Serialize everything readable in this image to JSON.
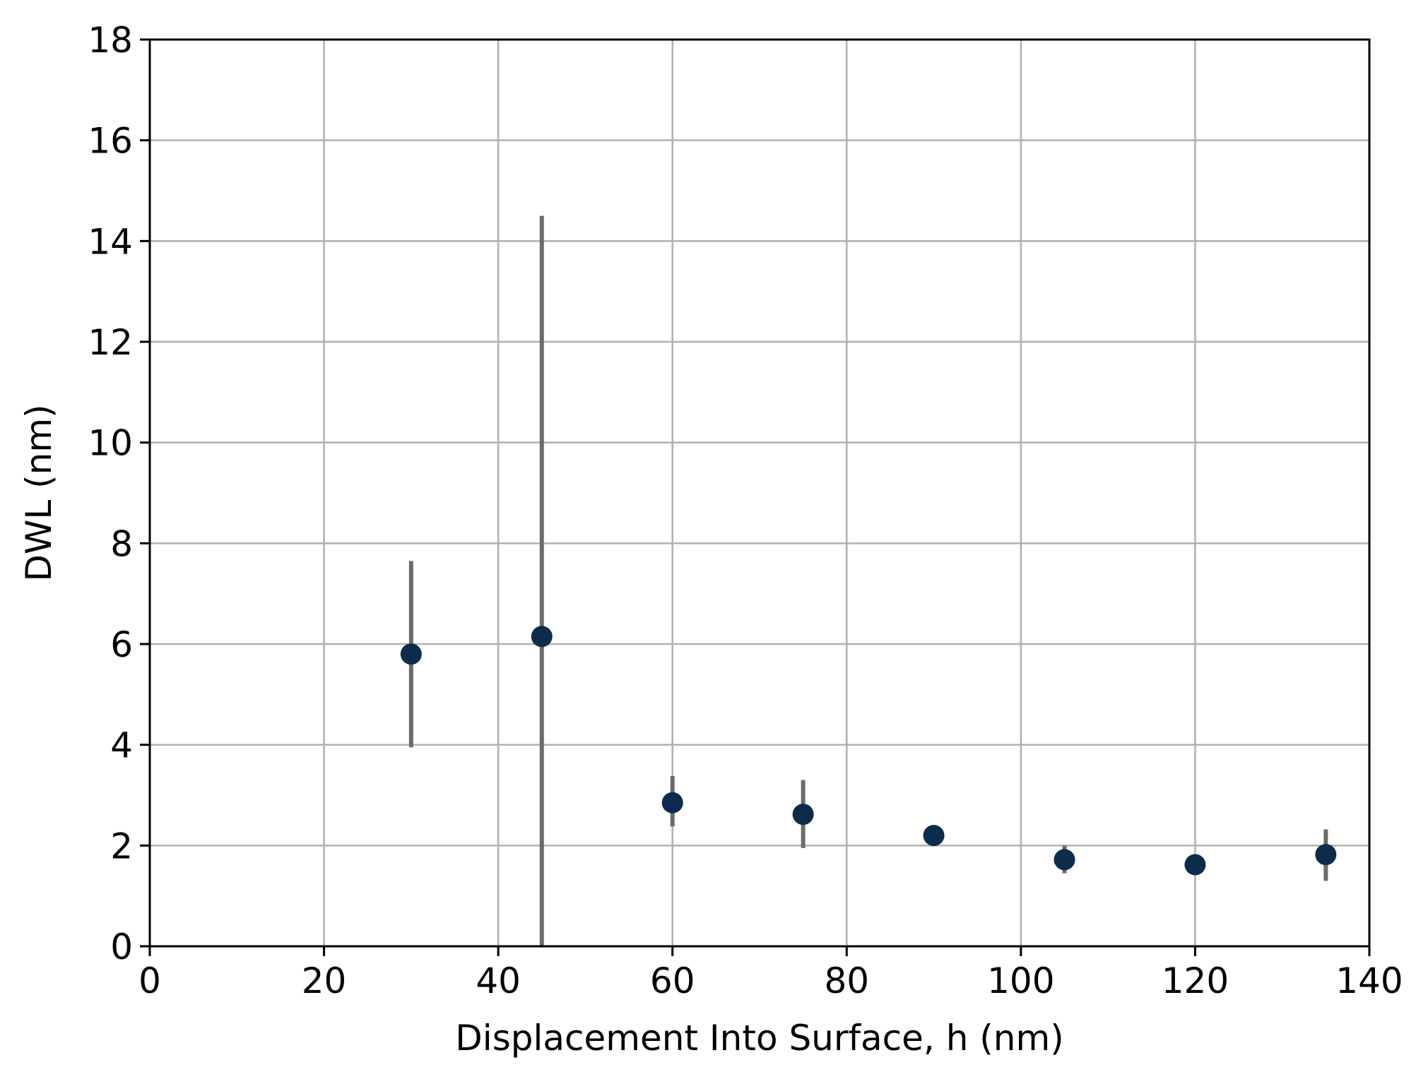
{
  "chart_data": {
    "type": "scatter",
    "title": "",
    "xlabel": "Displacement Into Surface, h (nm)",
    "ylabel": "DWL (nm)",
    "xlim": [
      0,
      140
    ],
    "ylim": [
      0,
      18
    ],
    "x_ticks": [
      0,
      20,
      40,
      60,
      80,
      100,
      120,
      140
    ],
    "y_ticks": [
      0,
      2,
      4,
      6,
      8,
      10,
      12,
      14,
      16,
      18
    ],
    "x_tick_labels": [
      "0",
      "20",
      "40",
      "60",
      "80",
      "100",
      "120",
      "140"
    ],
    "y_tick_labels": [
      "0",
      "2",
      "4",
      "6",
      "8",
      "10",
      "12",
      "14",
      "16",
      "18"
    ],
    "grid": true,
    "legend": "none",
    "marker_color": "#0d2b4a",
    "error_bar_color": "#6b6b6b",
    "series": [
      {
        "x": [
          30,
          45,
          60,
          75,
          90,
          105,
          120,
          135
        ],
        "y": [
          5.8,
          6.15,
          2.85,
          2.62,
          2.2,
          1.72,
          1.62,
          1.82
        ],
        "yerr_low": [
          3.95,
          0.0,
          2.38,
          1.95,
          2.2,
          1.45,
          1.62,
          1.3
        ],
        "yerr_high": [
          7.65,
          14.5,
          3.38,
          3.3,
          2.2,
          2.0,
          1.62,
          2.32
        ]
      }
    ]
  }
}
